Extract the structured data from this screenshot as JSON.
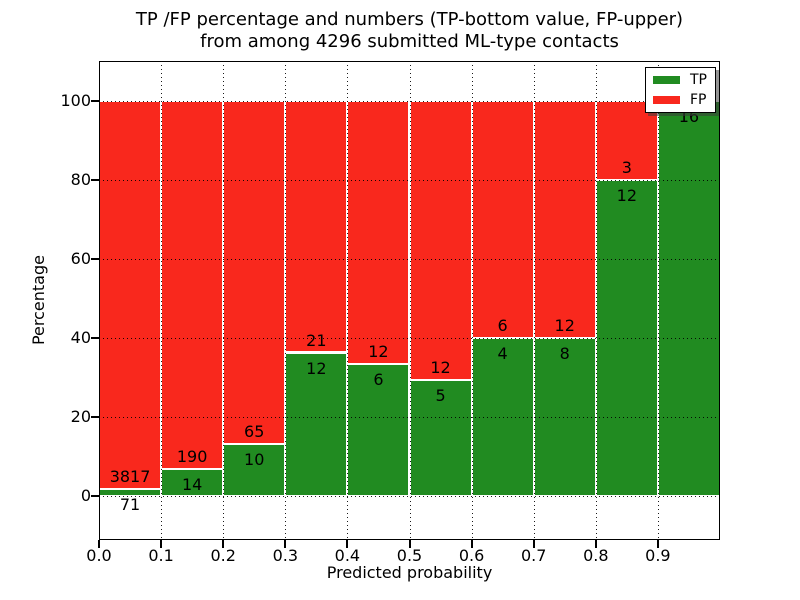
{
  "figure": {
    "title_line1": "TP /FP percentage and numbers (TP-bottom value, FP-upper)",
    "title_line2": "from among 4296 submitted ML-type contacts",
    "xlabel": "Predicted probability",
    "ylabel": "Percentage"
  },
  "legend": {
    "items": [
      {
        "label": "TP",
        "color": "#218b21"
      },
      {
        "label": "FP",
        "color": "#f9281d"
      }
    ]
  },
  "colors": {
    "tp_green": "#218b21",
    "fp_red": "#f9281d",
    "grid": "#000000",
    "spine": "#000000",
    "background": "#ffffff"
  },
  "chart_data": {
    "type": "bar",
    "stacked": true,
    "title": "TP /FP percentage and numbers (TP-bottom value, FP-upper) from among 4296 submitted ML-type contacts",
    "xlabel": "Predicted probability",
    "ylabel": "Percentage",
    "total_submitted": 4296,
    "xlim": [
      0.0,
      1.0
    ],
    "ylim": [
      -11,
      110
    ],
    "x_tick_labels": [
      "0.0",
      "0.1",
      "0.2",
      "0.3",
      "0.4",
      "0.5",
      "0.6",
      "0.7",
      "0.8",
      "0.9"
    ],
    "y_tick_values": [
      0,
      20,
      40,
      60,
      80,
      100
    ],
    "grid": "dotted",
    "legend_position": "upper right",
    "categories": [
      "0.0-0.1",
      "0.1-0.2",
      "0.2-0.3",
      "0.3-0.4",
      "0.4-0.5",
      "0.5-0.6",
      "0.6-0.7",
      "0.7-0.8",
      "0.8-0.9",
      "0.9-1.0"
    ],
    "series": [
      {
        "name": "TP",
        "color": "#218b21",
        "values": [
          71,
          14,
          10,
          12,
          6,
          5,
          4,
          8,
          12,
          16
        ]
      },
      {
        "name": "FP",
        "color": "#f9281d",
        "values": [
          3817,
          190,
          65,
          21,
          12,
          12,
          6,
          12,
          3,
          0
        ]
      }
    ],
    "tp_percent": [
      1.8,
      6.9,
      13.3,
      36.4,
      33.3,
      29.4,
      40.0,
      40.0,
      80.0,
      100.0
    ]
  }
}
